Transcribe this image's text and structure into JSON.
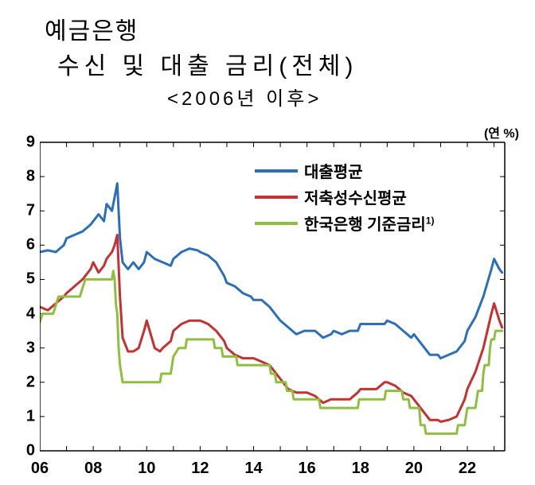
{
  "title1": "예금은행",
  "title2": "수신 및 대출 금리(전체)",
  "subtitle": "<2006년 이후>",
  "unit_label": "(연 %)",
  "chart": {
    "type": "line",
    "background_color": "#ffffff",
    "title_fontsize": 30,
    "label_fontsize": 20,
    "line_width": 3,
    "x": {
      "ticks": [
        "06",
        "08",
        "10",
        "12",
        "14",
        "16",
        "18",
        "20",
        "22"
      ],
      "range_vals": [
        2006,
        2023.4
      ]
    },
    "y": {
      "min": 0,
      "max": 9,
      "step": 1,
      "ticks": [
        0,
        1,
        2,
        3,
        4,
        5,
        6,
        7,
        8,
        9
      ]
    },
    "series": [
      {
        "name": "대출평균",
        "color": "#2d6fb7",
        "data": [
          [
            2006.0,
            5.8
          ],
          [
            2006.3,
            5.85
          ],
          [
            2006.6,
            5.8
          ],
          [
            2006.9,
            6.0
          ],
          [
            2007.0,
            6.2
          ],
          [
            2007.3,
            6.3
          ],
          [
            2007.6,
            6.4
          ],
          [
            2007.9,
            6.6
          ],
          [
            2008.0,
            6.7
          ],
          [
            2008.2,
            6.9
          ],
          [
            2008.4,
            6.7
          ],
          [
            2008.5,
            7.2
          ],
          [
            2008.7,
            7.0
          ],
          [
            2008.8,
            7.4
          ],
          [
            2008.9,
            7.8
          ],
          [
            2009.0,
            6.2
          ],
          [
            2009.1,
            5.5
          ],
          [
            2009.3,
            5.3
          ],
          [
            2009.5,
            5.5
          ],
          [
            2009.7,
            5.3
          ],
          [
            2009.9,
            5.5
          ],
          [
            2010.0,
            5.8
          ],
          [
            2010.3,
            5.6
          ],
          [
            2010.6,
            5.5
          ],
          [
            2010.9,
            5.4
          ],
          [
            2011.0,
            5.6
          ],
          [
            2011.3,
            5.8
          ],
          [
            2011.6,
            5.9
          ],
          [
            2011.9,
            5.85
          ],
          [
            2012.0,
            5.8
          ],
          [
            2012.3,
            5.7
          ],
          [
            2012.6,
            5.5
          ],
          [
            2012.9,
            5.1
          ],
          [
            2013.0,
            4.9
          ],
          [
            2013.3,
            4.8
          ],
          [
            2013.6,
            4.6
          ],
          [
            2013.9,
            4.5
          ],
          [
            2014.0,
            4.4
          ],
          [
            2014.3,
            4.4
          ],
          [
            2014.6,
            4.2
          ],
          [
            2014.9,
            3.9
          ],
          [
            2015.0,
            3.8
          ],
          [
            2015.3,
            3.6
          ],
          [
            2015.6,
            3.4
          ],
          [
            2015.9,
            3.5
          ],
          [
            2016.0,
            3.5
          ],
          [
            2016.3,
            3.5
          ],
          [
            2016.6,
            3.3
          ],
          [
            2016.9,
            3.4
          ],
          [
            2017.0,
            3.5
          ],
          [
            2017.3,
            3.4
          ],
          [
            2017.6,
            3.5
          ],
          [
            2017.9,
            3.5
          ],
          [
            2018.0,
            3.7
          ],
          [
            2018.3,
            3.7
          ],
          [
            2018.6,
            3.7
          ],
          [
            2018.9,
            3.7
          ],
          [
            2019.0,
            3.8
          ],
          [
            2019.3,
            3.7
          ],
          [
            2019.6,
            3.5
          ],
          [
            2019.9,
            3.3
          ],
          [
            2020.0,
            3.4
          ],
          [
            2020.3,
            3.1
          ],
          [
            2020.6,
            2.8
          ],
          [
            2020.9,
            2.8
          ],
          [
            2021.0,
            2.7
          ],
          [
            2021.3,
            2.8
          ],
          [
            2021.6,
            2.9
          ],
          [
            2021.9,
            3.2
          ],
          [
            2022.0,
            3.5
          ],
          [
            2022.3,
            3.9
          ],
          [
            2022.6,
            4.5
          ],
          [
            2022.9,
            5.3
          ],
          [
            2023.0,
            5.6
          ],
          [
            2023.2,
            5.3
          ],
          [
            2023.3,
            5.2
          ]
        ]
      },
      {
        "name": "저축성수신평균",
        "color": "#c53030",
        "data": [
          [
            2006.0,
            4.2
          ],
          [
            2006.3,
            4.1
          ],
          [
            2006.6,
            4.3
          ],
          [
            2006.9,
            4.5
          ],
          [
            2007.0,
            4.6
          ],
          [
            2007.3,
            4.8
          ],
          [
            2007.6,
            5.0
          ],
          [
            2007.9,
            5.3
          ],
          [
            2008.0,
            5.5
          ],
          [
            2008.2,
            5.2
          ],
          [
            2008.4,
            5.4
          ],
          [
            2008.5,
            5.6
          ],
          [
            2008.7,
            5.8
          ],
          [
            2008.8,
            6.0
          ],
          [
            2008.9,
            6.3
          ],
          [
            2009.0,
            4.5
          ],
          [
            2009.1,
            3.3
          ],
          [
            2009.3,
            2.9
          ],
          [
            2009.5,
            2.9
          ],
          [
            2009.7,
            3.0
          ],
          [
            2009.9,
            3.5
          ],
          [
            2010.0,
            3.8
          ],
          [
            2010.3,
            3.0
          ],
          [
            2010.5,
            2.9
          ],
          [
            2010.6,
            3.0
          ],
          [
            2010.9,
            3.2
          ],
          [
            2011.0,
            3.5
          ],
          [
            2011.3,
            3.7
          ],
          [
            2011.6,
            3.8
          ],
          [
            2011.9,
            3.8
          ],
          [
            2012.0,
            3.8
          ],
          [
            2012.3,
            3.7
          ],
          [
            2012.6,
            3.5
          ],
          [
            2012.9,
            3.2
          ],
          [
            2013.0,
            3.0
          ],
          [
            2013.3,
            2.8
          ],
          [
            2013.6,
            2.7
          ],
          [
            2013.9,
            2.7
          ],
          [
            2014.0,
            2.7
          ],
          [
            2014.3,
            2.6
          ],
          [
            2014.6,
            2.5
          ],
          [
            2014.9,
            2.2
          ],
          [
            2015.0,
            2.1
          ],
          [
            2015.3,
            1.8
          ],
          [
            2015.6,
            1.7
          ],
          [
            2015.9,
            1.7
          ],
          [
            2016.0,
            1.7
          ],
          [
            2016.3,
            1.6
          ],
          [
            2016.6,
            1.4
          ],
          [
            2016.9,
            1.5
          ],
          [
            2017.0,
            1.5
          ],
          [
            2017.3,
            1.5
          ],
          [
            2017.6,
            1.5
          ],
          [
            2017.9,
            1.7
          ],
          [
            2018.0,
            1.8
          ],
          [
            2018.3,
            1.8
          ],
          [
            2018.6,
            1.8
          ],
          [
            2018.9,
            2.0
          ],
          [
            2019.0,
            2.0
          ],
          [
            2019.3,
            1.9
          ],
          [
            2019.6,
            1.7
          ],
          [
            2019.9,
            1.6
          ],
          [
            2020.0,
            1.5
          ],
          [
            2020.3,
            1.2
          ],
          [
            2020.6,
            0.9
          ],
          [
            2020.9,
            0.9
          ],
          [
            2021.0,
            0.85
          ],
          [
            2021.3,
            0.9
          ],
          [
            2021.6,
            1.0
          ],
          [
            2021.9,
            1.5
          ],
          [
            2022.0,
            1.8
          ],
          [
            2022.3,
            2.3
          ],
          [
            2022.6,
            3.0
          ],
          [
            2022.9,
            4.0
          ],
          [
            2023.0,
            4.3
          ],
          [
            2023.2,
            3.8
          ],
          [
            2023.3,
            3.6
          ]
        ]
      },
      {
        "name": "한국은행 기준금리",
        "sup": "1)",
        "color": "#8fbf3f",
        "data": [
          [
            2006.0,
            3.75
          ],
          [
            2006.1,
            4.0
          ],
          [
            2006.5,
            4.0
          ],
          [
            2006.6,
            4.25
          ],
          [
            2006.7,
            4.5
          ],
          [
            2007.5,
            4.5
          ],
          [
            2007.6,
            4.75
          ],
          [
            2007.7,
            5.0
          ],
          [
            2008.7,
            5.0
          ],
          [
            2008.75,
            5.25
          ],
          [
            2008.8,
            5.0
          ],
          [
            2008.85,
            4.25
          ],
          [
            2008.9,
            4.0
          ],
          [
            2008.95,
            3.0
          ],
          [
            2009.0,
            2.5
          ],
          [
            2009.1,
            2.0
          ],
          [
            2010.5,
            2.0
          ],
          [
            2010.55,
            2.25
          ],
          [
            2010.9,
            2.25
          ],
          [
            2010.95,
            2.5
          ],
          [
            2011.0,
            2.75
          ],
          [
            2011.2,
            3.0
          ],
          [
            2011.45,
            3.0
          ],
          [
            2011.5,
            3.25
          ],
          [
            2012.5,
            3.25
          ],
          [
            2012.55,
            3.0
          ],
          [
            2012.8,
            3.0
          ],
          [
            2012.85,
            2.75
          ],
          [
            2013.35,
            2.75
          ],
          [
            2013.4,
            2.5
          ],
          [
            2014.6,
            2.5
          ],
          [
            2014.65,
            2.25
          ],
          [
            2014.8,
            2.25
          ],
          [
            2014.85,
            2.0
          ],
          [
            2015.2,
            2.0
          ],
          [
            2015.25,
            1.75
          ],
          [
            2015.45,
            1.75
          ],
          [
            2015.5,
            1.5
          ],
          [
            2016.45,
            1.5
          ],
          [
            2016.5,
            1.25
          ],
          [
            2017.9,
            1.25
          ],
          [
            2017.95,
            1.5
          ],
          [
            2018.9,
            1.5
          ],
          [
            2018.95,
            1.75
          ],
          [
            2019.55,
            1.75
          ],
          [
            2019.6,
            1.5
          ],
          [
            2019.8,
            1.5
          ],
          [
            2019.85,
            1.25
          ],
          [
            2020.2,
            1.25
          ],
          [
            2020.25,
            0.75
          ],
          [
            2020.4,
            0.75
          ],
          [
            2020.45,
            0.5
          ],
          [
            2021.6,
            0.5
          ],
          [
            2021.65,
            0.75
          ],
          [
            2021.9,
            0.75
          ],
          [
            2021.95,
            1.0
          ],
          [
            2022.0,
            1.25
          ],
          [
            2022.3,
            1.25
          ],
          [
            2022.35,
            1.5
          ],
          [
            2022.4,
            1.75
          ],
          [
            2022.55,
            1.75
          ],
          [
            2022.6,
            2.25
          ],
          [
            2022.65,
            2.5
          ],
          [
            2022.8,
            2.5
          ],
          [
            2022.85,
            3.0
          ],
          [
            2022.9,
            3.25
          ],
          [
            2023.0,
            3.25
          ],
          [
            2023.05,
            3.5
          ],
          [
            2023.3,
            3.5
          ]
        ]
      }
    ]
  }
}
